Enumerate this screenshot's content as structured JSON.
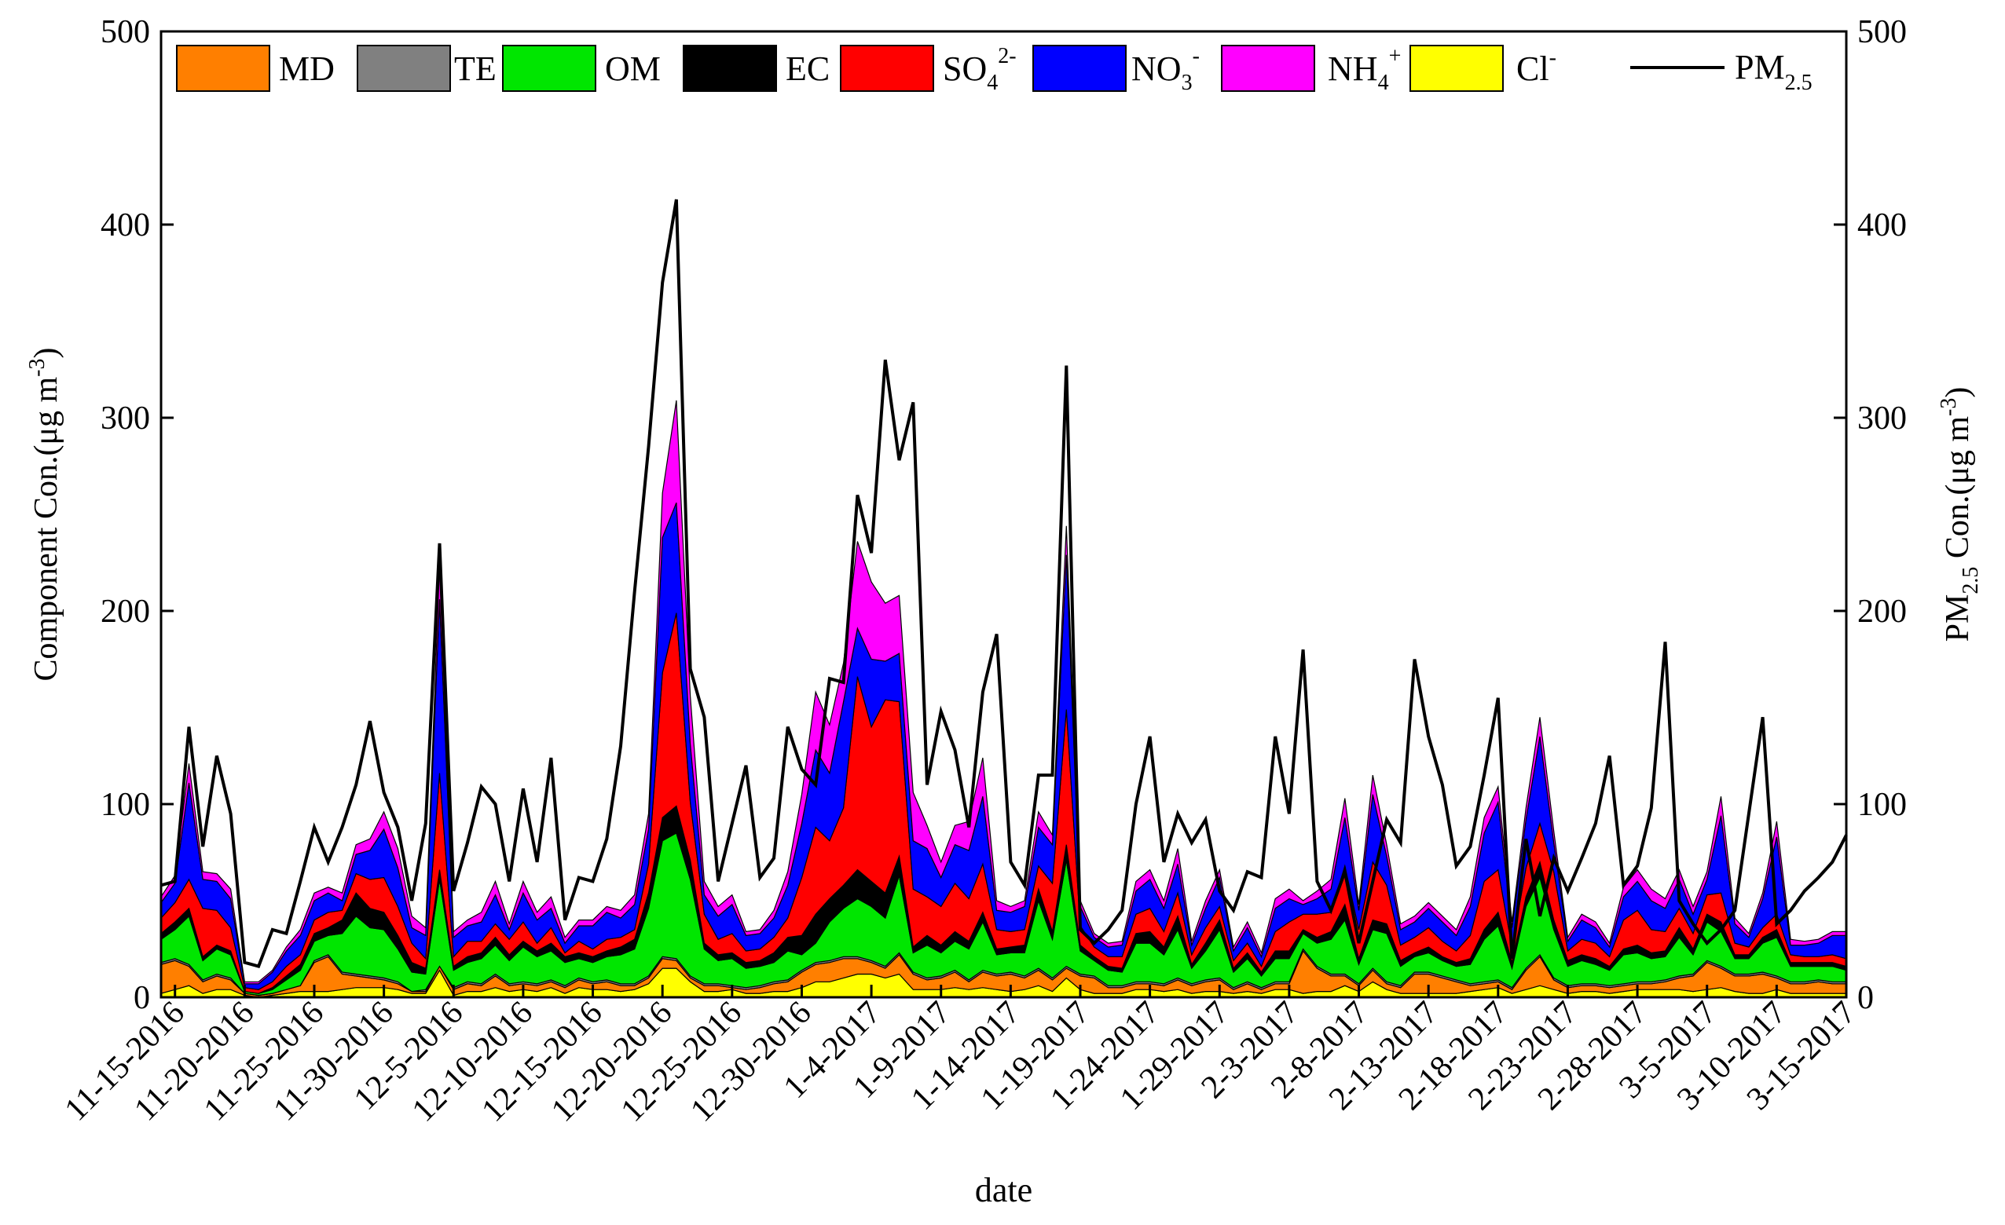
{
  "chart_data": {
    "type": "area",
    "stacked": true,
    "xlabel": "date",
    "ylabel_left": "Component Con.(μg m",
    "ylabel_left_sup": "-3",
    "ylabel_left_end": ")",
    "ylabel_right_pre": "PM",
    "ylabel_right_sub": "2.5",
    "ylabel_right_mid": " Con.(μg m",
    "ylabel_right_sup": "-3",
    "ylabel_right_end": ")",
    "ylim": [
      0,
      500
    ],
    "yticks": [
      0,
      100,
      200,
      300,
      400,
      500
    ],
    "grid": false,
    "legend_position": "top",
    "x_start_date": "11-14-2016",
    "x_end_date": "3-15-2017",
    "xtick_labels": [
      "11-15-2016",
      "11-20-2016",
      "11-25-2016",
      "11-30-2016",
      "12-5-2016",
      "12-10-2016",
      "12-15-2016",
      "12-20-2016",
      "12-25-2016",
      "12-30-2016",
      "1-4-2017",
      "1-9-2017",
      "1-14-2017",
      "1-19-2017",
      "1-24-2017",
      "1-29-2017",
      "2-3-2017",
      "2-8-2017",
      "2-13-2017",
      "2-18-2017",
      "2-23-2017",
      "2-28-2017",
      "3-5-2017",
      "3-10-2017",
      "3-15-2017"
    ],
    "legend": [
      {
        "key": "MD",
        "label": "MD",
        "sup": "",
        "sub": "",
        "color": "#FF7F00"
      },
      {
        "key": "TE",
        "label": "TE",
        "sup": "",
        "sub": "",
        "color": "#808080"
      },
      {
        "key": "OM",
        "label": "OM",
        "sup": "",
        "sub": "",
        "color": "#00E600"
      },
      {
        "key": "EC",
        "label": "EC",
        "sup": "",
        "sub": "",
        "color": "#000000"
      },
      {
        "key": "SO4",
        "label": "SO",
        "sub": "4",
        "sup": "2-",
        "color": "#FF0000"
      },
      {
        "key": "NO3",
        "label": "NO",
        "sub": "3",
        "sup": "-",
        "color": "#0000FF"
      },
      {
        "key": "NH4",
        "label": "NH",
        "sub": "4",
        "sup": "+",
        "color": "#FF00FF"
      },
      {
        "key": "Cl",
        "label": "Cl",
        "sub": "",
        "sup": "-",
        "color": "#FFFF00"
      }
    ],
    "pm_legend": {
      "label": "PM",
      "sub": "2.5",
      "color": "#000000"
    },
    "stack_order": [
      "Cl",
      "MD",
      "TE",
      "OM",
      "EC",
      "SO4",
      "NO3",
      "NH4"
    ],
    "x": [
      0,
      1,
      2,
      3,
      4,
      5,
      6,
      7,
      8,
      9,
      10,
      11,
      12,
      13,
      14,
      15,
      16,
      17,
      18,
      19,
      20,
      21,
      22,
      23,
      24,
      25,
      26,
      27,
      28,
      29,
      30,
      31,
      32,
      33,
      34,
      35,
      36,
      37,
      38,
      39,
      40,
      41,
      42,
      43,
      44,
      45,
      46,
      47,
      48,
      49,
      50,
      51,
      52,
      53,
      54,
      55,
      56,
      57,
      58,
      59,
      60,
      61,
      62,
      63,
      64,
      65,
      66,
      67,
      68,
      69,
      70,
      71,
      72,
      73,
      74,
      75,
      76,
      77,
      78,
      79,
      80,
      81,
      82,
      83,
      84,
      85,
      86,
      87,
      88,
      89,
      90,
      91,
      92,
      93,
      94,
      95,
      96,
      97,
      98,
      99,
      100,
      101,
      102,
      103,
      104,
      105,
      106,
      107,
      108,
      109,
      110,
      111,
      112,
      113,
      114,
      115,
      116,
      117,
      118,
      119,
      120,
      121
    ],
    "series": [
      {
        "key": "MD",
        "values": [
          15,
          15,
          10,
          6,
          7,
          5,
          1,
          1,
          1,
          2,
          3,
          15,
          18,
          8,
          6,
          5,
          4,
          3,
          1,
          1,
          2,
          3,
          4,
          3,
          6,
          3,
          3,
          3,
          3,
          3,
          4,
          3,
          4,
          3,
          2,
          3,
          5,
          4,
          2,
          3,
          3,
          1,
          2,
          3,
          4,
          5,
          8,
          9,
          10,
          10,
          8,
          6,
          5,
          10,
          8,
          5,
          6,
          8,
          4,
          8,
          7,
          9,
          6,
          8,
          6,
          5,
          7,
          8,
          3,
          3,
          3,
          3,
          3,
          5,
          4,
          5,
          6,
          2,
          4,
          2,
          3,
          3,
          22,
          12,
          8,
          5,
          3,
          6,
          3,
          3,
          10,
          10,
          8,
          6,
          3,
          3,
          3,
          2,
          10,
          15,
          5,
          3,
          3,
          3,
          3,
          3,
          3,
          3,
          4,
          6,
          8,
          14,
          10,
          8,
          9,
          10,
          6,
          5,
          5,
          6,
          5,
          5
        ]
      },
      {
        "key": "TE",
        "values": [
          1,
          1,
          1,
          1,
          1,
          1,
          0,
          0,
          0,
          0,
          0,
          1,
          1,
          1,
          1,
          1,
          1,
          1,
          0,
          1,
          0,
          1,
          1,
          1,
          1,
          1,
          1,
          1,
          1,
          1,
          1,
          1,
          1,
          1,
          1,
          1,
          1,
          1,
          1,
          1,
          1,
          1,
          1,
          1,
          1,
          1,
          1,
          1,
          1,
          1,
          1,
          1,
          1,
          1,
          1,
          1,
          1,
          1,
          1,
          1,
          1,
          1,
          1,
          1,
          1,
          1,
          1,
          1,
          1,
          1,
          1,
          1,
          1,
          1,
          1,
          1,
          1,
          1,
          1,
          1,
          1,
          1,
          1,
          1,
          1,
          1,
          1,
          1,
          1,
          1,
          1,
          1,
          1,
          1,
          1,
          1,
          1,
          1,
          1,
          1,
          1,
          1,
          1,
          1,
          1,
          1,
          1,
          1,
          1,
          1,
          1,
          1,
          1,
          1,
          1,
          1,
          1,
          1,
          1,
          1,
          1,
          1
        ]
      },
      {
        "key": "OM",
        "values": [
          12,
          15,
          25,
          10,
          13,
          12,
          1,
          1,
          2,
          5,
          8,
          10,
          10,
          20,
          30,
          25,
          25,
          17,
          10,
          8,
          45,
          9,
          10,
          13,
          15,
          12,
          18,
          14,
          15,
          12,
          10,
          10,
          12,
          15,
          18,
          35,
          60,
          65,
          50,
          18,
          12,
          14,
          10,
          10,
          10,
          15,
          8,
          10,
          20,
          25,
          30,
          28,
          25,
          40,
          10,
          17,
          12,
          15,
          16,
          25,
          10,
          10,
          12,
          35,
          20,
          55,
          12,
          8,
          8,
          7,
          20,
          20,
          15,
          25,
          8,
          15,
          25,
          8,
          12,
          6,
          12,
          12,
          8,
          12,
          18,
          28,
          10,
          20,
          25,
          10,
          8,
          10,
          8,
          7,
          10,
          22,
          28,
          10,
          32,
          40,
          25,
          10,
          12,
          10,
          8,
          15,
          15,
          12,
          12,
          20,
          10,
          20,
          18,
          8,
          8,
          15,
          20,
          8,
          8,
          7,
          8,
          6
        ]
      },
      {
        "key": "EC",
        "values": [
          3,
          4,
          4,
          2,
          2,
          2,
          0,
          0,
          1,
          2,
          3,
          4,
          4,
          7,
          12,
          10,
          9,
          7,
          5,
          3,
          5,
          2,
          3,
          3,
          4,
          3,
          3,
          3,
          4,
          3,
          3,
          3,
          3,
          4,
          5,
          8,
          12,
          14,
          10,
          3,
          3,
          3,
          3,
          3,
          5,
          7,
          10,
          15,
          12,
          12,
          15,
          13,
          13,
          10,
          3,
          5,
          4,
          5,
          4,
          5,
          3,
          3,
          4,
          6,
          4,
          8,
          3,
          2,
          2,
          2,
          5,
          6,
          4,
          7,
          2,
          4,
          5,
          2,
          3,
          2,
          4,
          4,
          2,
          3,
          4,
          8,
          3,
          5,
          5,
          3,
          2,
          3,
          2,
          2,
          3,
          5,
          7,
          3,
          5,
          8,
          5,
          3,
          3,
          3,
          2,
          3,
          4,
          3,
          3,
          5,
          3,
          4,
          5,
          2,
          2,
          3,
          4,
          2,
          2,
          2,
          2,
          2
        ]
      },
      {
        "key": "SO4",
        "values": [
          8,
          10,
          15,
          25,
          18,
          12,
          2,
          2,
          3,
          5,
          5,
          7,
          8,
          5,
          10,
          15,
          18,
          15,
          10,
          5,
          50,
          5,
          8,
          6,
          7,
          8,
          10,
          4,
          8,
          2,
          6,
          4,
          6,
          5,
          5,
          15,
          75,
          100,
          30,
          15,
          8,
          10,
          6,
          6,
          8,
          10,
          30,
          45,
          30,
          40,
          100,
          80,
          100,
          80,
          30,
          20,
          20,
          25,
          22,
          25,
          10,
          8,
          8,
          12,
          25,
          70,
          10,
          5,
          5,
          6,
          10,
          12,
          8,
          12,
          5,
          8,
          7,
          4,
          5,
          3,
          10,
          15,
          8,
          12,
          10,
          20,
          15,
          30,
          20,
          8,
          8,
          10,
          8,
          6,
          12,
          25,
          22,
          8,
          15,
          20,
          25,
          5,
          8,
          8,
          5,
          15,
          18,
          12,
          10,
          10,
          8,
          10,
          15,
          6,
          4,
          5,
          8,
          4,
          3,
          3,
          4,
          4
        ]
      },
      {
        "key": "NO3",
        "values": [
          8,
          10,
          50,
          15,
          15,
          15,
          2,
          3,
          5,
          8,
          10,
          10,
          10,
          5,
          10,
          15,
          25,
          20,
          8,
          12,
          90,
          10,
          8,
          10,
          15,
          5,
          15,
          12,
          10,
          5,
          8,
          12,
          14,
          10,
          13,
          18,
          70,
          57,
          30,
          10,
          12,
          15,
          8,
          8,
          10,
          17,
          28,
          40,
          35,
          55,
          25,
          35,
          20,
          25,
          25,
          25,
          15,
          20,
          25,
          35,
          10,
          10,
          12,
          20,
          20,
          80,
          10,
          5,
          5,
          6,
          12,
          15,
          12,
          15,
          5,
          10,
          15,
          5,
          8,
          5,
          12,
          12,
          5,
          8,
          12,
          25,
          10,
          35,
          15,
          8,
          8,
          10,
          10,
          8,
          15,
          25,
          35,
          10,
          25,
          45,
          15,
          5,
          10,
          8,
          5,
          12,
          15,
          15,
          12,
          15,
          10,
          8,
          40,
          10,
          5,
          15,
          40,
          5,
          6,
          7,
          10,
          12
        ]
      },
      {
        "key": "NH4",
        "values": [
          3,
          4,
          10,
          4,
          4,
          5,
          1,
          1,
          1,
          2,
          3,
          4,
          3,
          4,
          5,
          6,
          9,
          10,
          6,
          4,
          18,
          3,
          3,
          5,
          7,
          3,
          6,
          4,
          6,
          3,
          3,
          3,
          3,
          4,
          5,
          8,
          23,
          53,
          25,
          7,
          5,
          5,
          2,
          2,
          4,
          7,
          15,
          30,
          25,
          20,
          45,
          40,
          30,
          30,
          25,
          12,
          8,
          10,
          15,
          20,
          5,
          3,
          3,
          8,
          5,
          15,
          3,
          2,
          2,
          2,
          5,
          5,
          4,
          8,
          2,
          4,
          4,
          2,
          3,
          2,
          5,
          5,
          2,
          4,
          5,
          10,
          3,
          10,
          6,
          3,
          3,
          3,
          3,
          3,
          5,
          8,
          8,
          3,
          6,
          10,
          6,
          2,
          3,
          3,
          2,
          5,
          6,
          6,
          5,
          5,
          4,
          4,
          10,
          3,
          2,
          3,
          8,
          3,
          2,
          2,
          2,
          2
        ]
      },
      {
        "key": "Cl",
        "values": [
          2,
          4,
          6,
          2,
          4,
          4,
          1,
          0,
          1,
          2,
          3,
          3,
          3,
          4,
          5,
          5,
          5,
          4,
          2,
          2,
          14,
          1,
          3,
          3,
          5,
          3,
          4,
          3,
          5,
          2,
          5,
          4,
          4,
          3,
          4,
          7,
          15,
          15,
          8,
          3,
          3,
          4,
          2,
          2,
          3,
          3,
          5,
          8,
          8,
          10,
          12,
          12,
          10,
          12,
          4,
          4,
          4,
          5,
          4,
          5,
          4,
          3,
          4,
          6,
          3,
          10,
          4,
          2,
          2,
          2,
          4,
          4,
          3,
          4,
          2,
          3,
          3,
          2,
          3,
          2,
          4,
          4,
          2,
          3,
          3,
          6,
          3,
          8,
          4,
          2,
          2,
          2,
          2,
          2,
          3,
          4,
          5,
          2,
          4,
          6,
          4,
          2,
          3,
          3,
          2,
          3,
          4,
          4,
          4,
          4,
          3,
          4,
          5,
          3,
          2,
          2,
          4,
          2,
          2,
          2,
          2,
          2
        ]
      }
    ],
    "pm25": [
      58,
      60,
      140,
      78,
      125,
      95,
      18,
      16,
      35,
      33,
      60,
      88,
      70,
      88,
      110,
      143,
      106,
      88,
      50,
      90,
      235,
      55,
      80,
      109,
      100,
      60,
      108,
      70,
      124,
      40,
      62,
      60,
      82,
      130,
      210,
      285,
      370,
      413,
      170,
      145,
      60,
      90,
      120,
      62,
      72,
      140,
      118,
      110,
      165,
      163,
      260,
      230,
      330,
      278,
      308,
      110,
      148,
      128,
      88,
      158,
      188,
      70,
      58,
      115,
      115,
      327,
      35,
      28,
      35,
      45,
      100,
      135,
      70,
      95,
      80,
      92,
      55,
      45,
      65,
      62,
      135,
      95,
      180,
      60,
      45,
      65,
      28,
      60,
      92,
      80,
      175,
      135,
      110,
      68,
      78,
      115,
      155,
      20,
      82,
      42,
      72,
      55,
      72,
      90,
      125,
      58,
      68,
      98,
      184,
      50,
      38,
      28,
      35,
      45,
      95,
      145,
      38,
      45,
      55,
      62,
      70,
      84
    ]
  }
}
